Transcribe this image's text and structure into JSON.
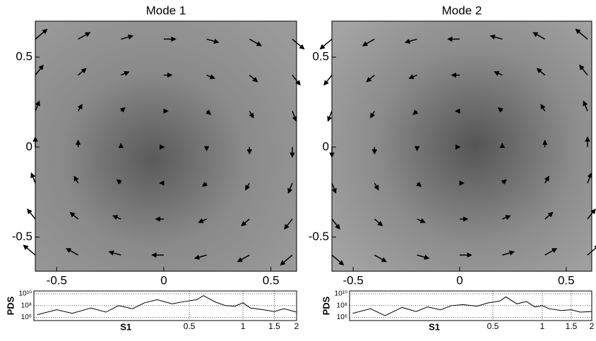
{
  "chart_data": [
    {
      "type": "quiver",
      "title": "Mode 1",
      "x": [
        -0.6,
        -0.4,
        -0.2,
        0,
        0.2,
        0.4,
        0.6
      ],
      "y": [
        -0.6,
        -0.4,
        -0.2,
        0,
        0.2,
        0.4,
        0.6
      ],
      "u": [
        [
          -0.06,
          -0.06,
          -0.06,
          -0.06,
          -0.06,
          -0.06,
          -0.06
        ],
        [
          -0.04,
          -0.04,
          -0.04,
          -0.04,
          -0.04,
          -0.04,
          -0.04
        ],
        [
          -0.02,
          -0.02,
          -0.02,
          -0.02,
          -0.02,
          -0.02,
          -0.02
        ],
        [
          0,
          0,
          0,
          0,
          0,
          0,
          0
        ],
        [
          0.02,
          0.02,
          0.02,
          0.02,
          0.02,
          0.02,
          0.02
        ],
        [
          0.04,
          0.04,
          0.04,
          0.04,
          0.04,
          0.04,
          0.04
        ],
        [
          0.06,
          0.06,
          0.06,
          0.06,
          0.06,
          0.06,
          0.06
        ]
      ],
      "v": [
        [
          0.06,
          0.04,
          0.02,
          0,
          -0.02,
          -0.04,
          -0.06
        ],
        [
          0.06,
          0.04,
          0.02,
          0,
          -0.02,
          -0.04,
          -0.06
        ],
        [
          0.06,
          0.04,
          0.02,
          0,
          -0.02,
          -0.04,
          -0.06
        ],
        [
          0.06,
          0.04,
          0.02,
          0,
          -0.02,
          -0.04,
          -0.06
        ],
        [
          0.06,
          0.04,
          0.02,
          0,
          -0.02,
          -0.04,
          -0.06
        ],
        [
          0.06,
          0.04,
          0.02,
          0,
          -0.02,
          -0.04,
          -0.06
        ],
        [
          0.06,
          0.04,
          0.02,
          0,
          -0.02,
          -0.04,
          -0.06
        ]
      ],
      "color": "#000000",
      "xlim": [
        -0.6,
        0.62
      ],
      "ylim": [
        -0.69,
        0.7
      ],
      "xticks": [
        -0.5,
        0,
        0.5
      ],
      "yticks": [
        -0.5,
        0,
        0.5
      ]
    },
    {
      "type": "quiver",
      "title": "Mode 2",
      "x": [
        -0.6,
        -0.4,
        -0.2,
        0,
        0.2,
        0.4,
        0.6
      ],
      "y": [
        -0.6,
        -0.4,
        -0.2,
        0,
        0.2,
        0.4,
        0.6
      ],
      "u": [
        [
          0.06,
          0.06,
          0.06,
          0.06,
          0.06,
          0.06,
          0.06
        ],
        [
          0.04,
          0.04,
          0.04,
          0.04,
          0.04,
          0.04,
          0.04
        ],
        [
          0.02,
          0.02,
          0.02,
          0.02,
          0.02,
          0.02,
          0.02
        ],
        [
          0,
          0,
          0,
          0,
          0,
          0,
          0
        ],
        [
          -0.02,
          -0.02,
          -0.02,
          -0.02,
          -0.02,
          -0.02,
          -0.02
        ],
        [
          -0.04,
          -0.04,
          -0.04,
          -0.04,
          -0.04,
          -0.04,
          -0.04
        ],
        [
          -0.06,
          -0.06,
          -0.06,
          -0.06,
          -0.06,
          -0.06,
          -0.06
        ]
      ],
      "v": [
        [
          -0.06,
          -0.04,
          -0.02,
          0,
          0.02,
          0.04,
          0.06
        ],
        [
          -0.06,
          -0.04,
          -0.02,
          0,
          0.02,
          0.04,
          0.06
        ],
        [
          -0.06,
          -0.04,
          -0.02,
          0,
          0.02,
          0.04,
          0.06
        ],
        [
          -0.06,
          -0.04,
          -0.02,
          0,
          0.02,
          0.04,
          0.06
        ],
        [
          -0.06,
          -0.04,
          -0.02,
          0,
          0.02,
          0.04,
          0.06
        ],
        [
          -0.06,
          -0.04,
          -0.02,
          0,
          0.02,
          0.04,
          0.06
        ],
        [
          -0.06,
          -0.04,
          -0.02,
          0,
          0.02,
          0.04,
          0.06
        ]
      ],
      "color": "#000000",
      "xlim": [
        -0.6,
        0.62
      ],
      "ylim": [
        -0.69,
        0.7
      ],
      "xticks": [
        -0.5,
        0,
        0.5
      ],
      "yticks": [
        -0.5,
        0,
        0.5
      ]
    },
    {
      "type": "line",
      "xlabel": "S1",
      "ylabel": "PDS",
      "log_x": true,
      "log_y": true,
      "grid": true,
      "x": [
        0.07,
        0.09,
        0.11,
        0.14,
        0.17,
        0.2,
        0.24,
        0.28,
        0.33,
        0.4,
        0.47,
        0.55,
        0.6,
        0.7,
        0.8,
        0.9,
        1,
        1.1,
        1.3,
        1.5,
        1.7,
        2
      ],
      "values": [
        3000000,
        20000000,
        5000000,
        40000000,
        8000000,
        100000000,
        30000000,
        300000000,
        1000000000,
        200000000,
        500000000,
        1000000000,
        5000000000,
        400000000,
        100000000,
        80000000,
        300000000,
        40000000,
        20000000,
        10000000,
        30000000,
        8000000
      ],
      "color": "#000000",
      "xlim": [
        0.067,
        2
      ],
      "ylim": [
        300000,
        30000000000
      ],
      "xticks": [
        0.5,
        1,
        1.5,
        2
      ],
      "yticks": [
        {
          "value": 1000000,
          "label": "10⁶"
        },
        {
          "value": 100000000,
          "label": "10⁸"
        },
        {
          "value": 10000000000,
          "label": "10¹⁰"
        }
      ]
    },
    {
      "type": "line",
      "xlabel": "S1",
      "ylabel": "PDS",
      "log_x": true,
      "log_y": true,
      "grid": true,
      "x": [
        0.07,
        0.09,
        0.11,
        0.14,
        0.17,
        0.2,
        0.24,
        0.28,
        0.33,
        0.4,
        0.47,
        0.55,
        0.6,
        0.7,
        0.8,
        0.9,
        1,
        1.1,
        1.3,
        1.5,
        1.7,
        2
      ],
      "values": [
        5000000,
        30000000,
        2000000,
        50000000,
        10000000,
        60000000,
        20000000,
        100000000,
        150000000,
        80000000,
        300000000,
        600000000,
        3000000000,
        200000000,
        500000000,
        60000000,
        100000000,
        30000000,
        15000000,
        20000000,
        8000000,
        10000000
      ],
      "color": "#000000",
      "xlim": [
        0.067,
        2
      ],
      "ylim": [
        300000,
        30000000000
      ],
      "xticks": [
        0.5,
        1,
        1.5,
        2
      ],
      "yticks": [
        {
          "value": 1000000,
          "label": "10⁶"
        },
        {
          "value": 100000000,
          "label": "10⁸"
        },
        {
          "value": 10000000000,
          "label": "10¹⁰"
        }
      ]
    }
  ]
}
